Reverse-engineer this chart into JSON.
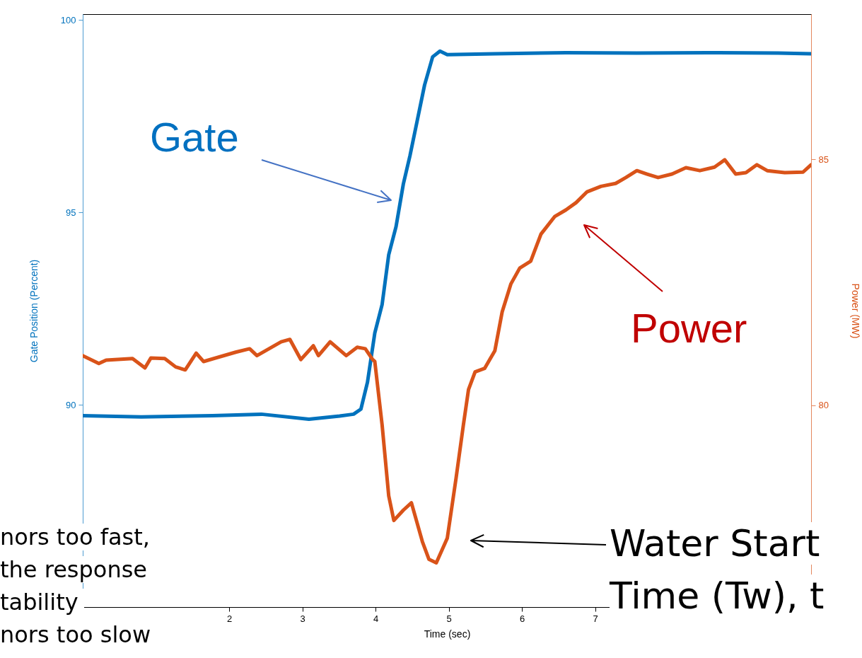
{
  "chart_data": {
    "type": "line",
    "xlabel": "Time (sec)",
    "ylabel": "Gate Position (Percent)",
    "y2label": "Power (MW)",
    "xlim": [
      0,
      9.95
    ],
    "xticks": [
      2,
      3,
      4,
      5,
      6,
      7
    ],
    "ylim": [
      84.75,
      100.15
    ],
    "yticks": [
      90,
      95,
      100
    ],
    "y2lim": [
      75.9,
      87.95
    ],
    "y2ticks": [
      80,
      85
    ],
    "series": [
      {
        "name": "Gate",
        "color": "#0072bd",
        "x": [
          0,
          0.8,
          1.77,
          2.44,
          3.09,
          3.51,
          3.7,
          3.8,
          3.89,
          3.99,
          4.09,
          4.18,
          4.28,
          4.38,
          4.47,
          4.57,
          4.67,
          4.78,
          4.88,
          4.98,
          5.63,
          6.6,
          7.57,
          8.53,
          9.5,
          9.95
        ],
        "values": [
          89.72,
          89.69,
          89.72,
          89.76,
          89.63,
          89.71,
          89.76,
          89.89,
          90.59,
          91.87,
          92.61,
          93.9,
          94.63,
          95.74,
          96.47,
          97.39,
          98.31,
          99.04,
          99.19,
          99.1,
          99.12,
          99.15,
          99.14,
          99.15,
          99.14,
          99.12
        ]
      },
      {
        "name": "Power",
        "color": "#d95319",
        "axis": "y2",
        "x": [
          0,
          0.22,
          0.32,
          0.68,
          0.85,
          0.93,
          1.12,
          1.27,
          1.4,
          1.55,
          1.65,
          2.09,
          2.28,
          2.38,
          2.71,
          2.83,
          2.98,
          3.15,
          3.22,
          3.38,
          3.6,
          3.75,
          3.86,
          3.96,
          3.99,
          4.09,
          4.18,
          4.25,
          4.38,
          4.49,
          4.64,
          4.73,
          4.83,
          4.98,
          5.1,
          5.2,
          5.27,
          5.36,
          5.49,
          5.63,
          5.73,
          5.85,
          5.97,
          6.12,
          6.26,
          6.45,
          6.6,
          6.74,
          6.89,
          7.08,
          7.28,
          7.42,
          7.57,
          7.71,
          7.86,
          8.05,
          8.24,
          8.43,
          8.63,
          8.77,
          8.92,
          9.06,
          9.21,
          9.35,
          9.59,
          9.84,
          9.95
        ],
        "values": [
          81.01,
          80.85,
          80.92,
          80.95,
          80.76,
          80.96,
          80.95,
          80.78,
          80.72,
          81.06,
          80.89,
          81.08,
          81.15,
          81.01,
          81.29,
          81.34,
          80.93,
          81.21,
          81.01,
          81.29,
          81.01,
          81.18,
          81.15,
          80.93,
          80.89,
          79.6,
          78.16,
          77.66,
          77.87,
          78.02,
          77.23,
          76.87,
          76.8,
          77.3,
          78.52,
          79.6,
          80.32,
          80.68,
          80.75,
          81.11,
          81.9,
          82.47,
          82.79,
          82.93,
          83.48,
          83.84,
          83.97,
          84.12,
          84.34,
          84.45,
          84.51,
          84.63,
          84.77,
          84.7,
          84.63,
          84.7,
          84.83,
          84.77,
          84.84,
          84.99,
          84.7,
          84.73,
          84.89,
          84.77,
          84.73,
          84.74,
          84.89
        ]
      }
    ],
    "annotations": [
      "nors too fast,",
      "the response",
      "tability",
      "nors too slow",
      "Water Start",
      "Time (Tw), t"
    ]
  }
}
